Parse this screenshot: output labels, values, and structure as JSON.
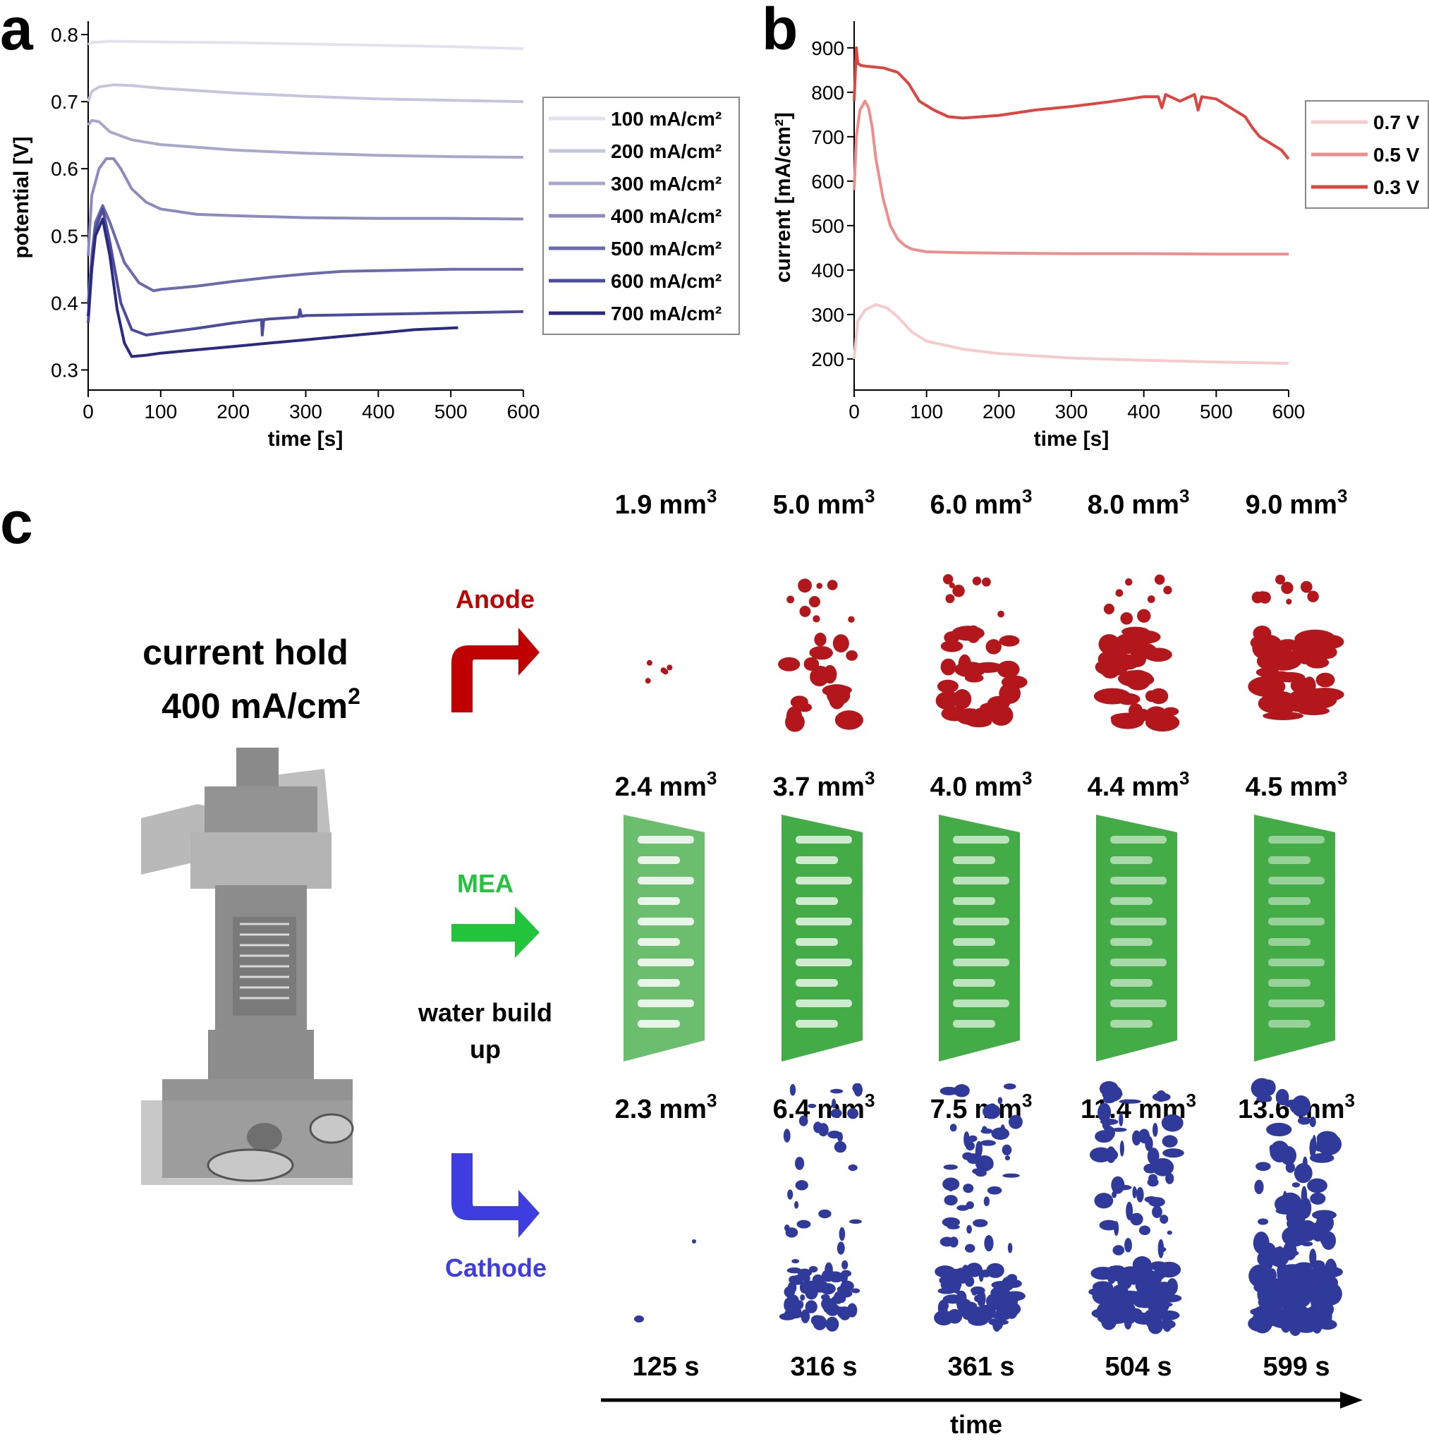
{
  "chart_data": [
    {
      "panel": "a",
      "type": "line",
      "title": "",
      "xlabel": "time [s]",
      "ylabel": "potential [V]",
      "xlim": [
        0,
        600
      ],
      "ylim": [
        0.27,
        0.82
      ],
      "xticks": [
        0,
        100,
        200,
        300,
        400,
        500,
        600
      ],
      "yticks": [
        0.3,
        0.4,
        0.5,
        0.6,
        0.7,
        0.8
      ],
      "legend_position": "right",
      "series": [
        {
          "name": "100 mA/cm²",
          "color": "#e2e1ee",
          "x": [
            0,
            5,
            30,
            100,
            200,
            300,
            400,
            500,
            600
          ],
          "y": [
            0.785,
            0.788,
            0.79,
            0.789,
            0.788,
            0.786,
            0.784,
            0.782,
            0.779
          ]
        },
        {
          "name": "200 mA/cm²",
          "color": "#c6c5de",
          "x": [
            0,
            5,
            15,
            35,
            60,
            100,
            200,
            300,
            400,
            500,
            600
          ],
          "y": [
            0.7,
            0.715,
            0.722,
            0.725,
            0.724,
            0.72,
            0.713,
            0.708,
            0.704,
            0.702,
            0.7
          ]
        },
        {
          "name": "300 mA/cm²",
          "color": "#a9a8cc",
          "x": [
            0,
            5,
            15,
            30,
            60,
            100,
            200,
            300,
            400,
            500,
            600
          ],
          "y": [
            0.665,
            0.672,
            0.67,
            0.655,
            0.643,
            0.636,
            0.628,
            0.623,
            0.62,
            0.618,
            0.617
          ]
        },
        {
          "name": "400 mA/cm²",
          "color": "#8d8bbe",
          "x": [
            0,
            5,
            15,
            25,
            35,
            45,
            60,
            80,
            100,
            150,
            200,
            300,
            400,
            500,
            600
          ],
          "y": [
            0.47,
            0.56,
            0.6,
            0.615,
            0.615,
            0.6,
            0.57,
            0.55,
            0.54,
            0.532,
            0.53,
            0.527,
            0.526,
            0.526,
            0.525
          ]
        },
        {
          "name": "500 mA/cm²",
          "color": "#6c6aae",
          "x": [
            0,
            5,
            10,
            20,
            30,
            50,
            70,
            90,
            100,
            150,
            200,
            250,
            300,
            350,
            400,
            450,
            500,
            550,
            600
          ],
          "y": [
            0.4,
            0.47,
            0.52,
            0.545,
            0.52,
            0.46,
            0.43,
            0.418,
            0.42,
            0.425,
            0.432,
            0.438,
            0.443,
            0.447,
            0.448,
            0.449,
            0.45,
            0.45,
            0.45
          ]
        },
        {
          "name": "600 mA/cm²",
          "color": "#4d4b9c",
          "x": [
            0,
            5,
            10,
            20,
            30,
            45,
            60,
            80,
            100,
            150,
            200,
            239,
            240,
            242,
            250,
            280,
            290,
            292,
            294,
            300,
            350,
            400,
            450,
            500,
            550,
            600
          ],
          "y": [
            0.37,
            0.45,
            0.51,
            0.54,
            0.49,
            0.4,
            0.36,
            0.352,
            0.355,
            0.362,
            0.37,
            0.375,
            0.352,
            0.375,
            0.376,
            0.378,
            0.379,
            0.39,
            0.38,
            0.381,
            0.382,
            0.383,
            0.384,
            0.385,
            0.386,
            0.387
          ]
        },
        {
          "name": "700 mA/cm²",
          "color": "#2b2a82",
          "x": [
            0,
            5,
            10,
            20,
            30,
            40,
            50,
            60,
            80,
            100,
            150,
            200,
            250,
            300,
            350,
            400,
            450,
            510
          ],
          "y": [
            0.38,
            0.45,
            0.5,
            0.525,
            0.47,
            0.39,
            0.34,
            0.32,
            0.322,
            0.325,
            0.33,
            0.335,
            0.34,
            0.345,
            0.35,
            0.355,
            0.36,
            0.363
          ]
        }
      ]
    },
    {
      "panel": "b",
      "type": "line",
      "title": "",
      "xlabel": "time [s]",
      "ylabel": "current [mA/cm²]",
      "xlim": [
        0,
        600
      ],
      "ylim": [
        130,
        960
      ],
      "xticks": [
        0,
        100,
        200,
        300,
        400,
        500,
        600
      ],
      "yticks": [
        200,
        300,
        400,
        500,
        600,
        700,
        800,
        900
      ],
      "legend_position": "top-right",
      "series": [
        {
          "name": "0.7 V",
          "color": "#f5cbcb",
          "x": [
            0,
            5,
            15,
            30,
            45,
            60,
            80,
            100,
            150,
            200,
            300,
            400,
            500,
            600
          ],
          "y": [
            200,
            285,
            310,
            322,
            315,
            295,
            260,
            240,
            222,
            212,
            202,
            197,
            193,
            190
          ]
        },
        {
          "name": "0.5 V",
          "color": "#ef8c8c",
          "x": [
            0,
            3,
            8,
            15,
            20,
            25,
            30,
            40,
            50,
            60,
            70,
            80,
            100,
            150,
            200,
            300,
            400,
            500,
            600
          ],
          "y": [
            580,
            700,
            760,
            780,
            765,
            720,
            650,
            560,
            500,
            470,
            455,
            447,
            441,
            439,
            438,
            437,
            437,
            436,
            436
          ]
        },
        {
          "name": "0.3 V",
          "color": "#e0443f",
          "x": [
            0,
            3,
            5,
            10,
            20,
            40,
            60,
            75,
            90,
            110,
            130,
            150,
            200,
            250,
            300,
            350,
            400,
            420,
            425,
            430,
            450,
            470,
            475,
            480,
            500,
            520,
            540,
            550,
            560,
            570,
            580,
            590,
            600
          ],
          "y": [
            780,
            900,
            865,
            860,
            858,
            855,
            845,
            820,
            780,
            760,
            745,
            742,
            748,
            760,
            768,
            778,
            790,
            790,
            765,
            795,
            780,
            795,
            760,
            790,
            785,
            765,
            745,
            720,
            700,
            690,
            680,
            670,
            650
          ]
        }
      ]
    }
  ],
  "panel_labels": {
    "a": "a",
    "b": "b",
    "c": "c"
  },
  "panel_c": {
    "title_line1": "current hold",
    "title_line2_base": "400 mA/cm",
    "title_line2_sup": "2",
    "anode_label": "Anode",
    "mea_label": "MEA",
    "cathode_label": "Cathode",
    "water_line1": "water build",
    "water_line2": "up",
    "unit": "mm",
    "unit_sup": "3",
    "anode_volumes": [
      "1.9",
      "5.0",
      "6.0",
      "8.0",
      "9.0"
    ],
    "mea_volumes": [
      "2.4",
      "3.7",
      "4.0",
      "4.4",
      "4.5"
    ],
    "cathode_volumes": [
      "2.3",
      "6.4",
      "7.5",
      "11.4",
      "13.6"
    ],
    "times": [
      "125 s",
      "316 s",
      "361 s",
      "504 s",
      "599 s"
    ],
    "time_axis_label": "time"
  },
  "colors": {
    "anode": "#c00000",
    "anode_blob": "#b3161b",
    "mea": "#22c43c",
    "mea_blob": "#3aa83c",
    "cathode": "#3e3ee0",
    "cathode_blob": "#2f3a9a",
    "cell_grey": "#8e8e8e"
  }
}
